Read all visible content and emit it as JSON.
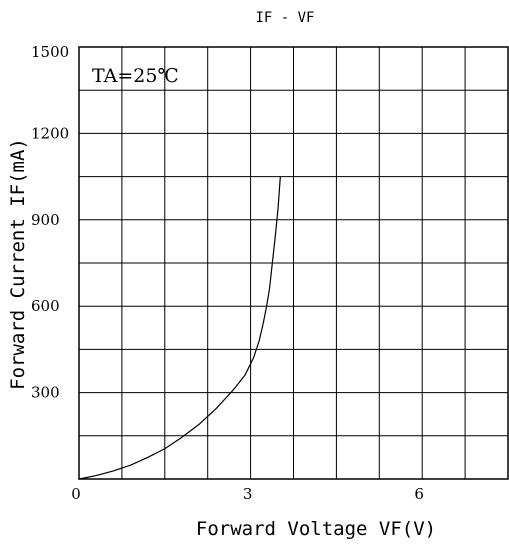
{
  "chart_data": {
    "type": "line",
    "title": "IF - VF",
    "xlabel": "Forward Voltage VF(V)",
    "ylabel": "Forward Current IF(mA)",
    "annotation": "TA=25℃",
    "xlim": [
      0,
      7.5
    ],
    "ylim": [
      0,
      1500
    ],
    "x_grid_step": 0.75,
    "y_grid_step": 150,
    "x_ticks": [
      {
        "value": 0,
        "label": "0"
      },
      {
        "value": 3,
        "label": "3"
      },
      {
        "value": 6,
        "label": "6"
      }
    ],
    "y_ticks": [
      {
        "value": 300,
        "label": "300"
      },
      {
        "value": 600,
        "label": "600"
      },
      {
        "value": 900,
        "label": "900"
      },
      {
        "value": 1200,
        "label": "1200"
      },
      {
        "value": 1500,
        "label": "1500"
      }
    ],
    "grid": true,
    "series": [
      {
        "color": "#000000",
        "x": [
          0,
          0.3,
          0.6,
          0.9,
          1.2,
          1.5,
          1.8,
          2.1,
          2.4,
          2.7,
          2.9,
          3.05,
          3.15,
          3.22,
          3.28,
          3.33,
          3.38,
          3.43,
          3.48,
          3.52
        ],
        "y": [
          0,
          12,
          28,
          48,
          75,
          105,
          145,
          190,
          245,
          310,
          360,
          420,
          480,
          540,
          600,
          660,
          750,
          840,
          940,
          1050
        ]
      }
    ]
  }
}
